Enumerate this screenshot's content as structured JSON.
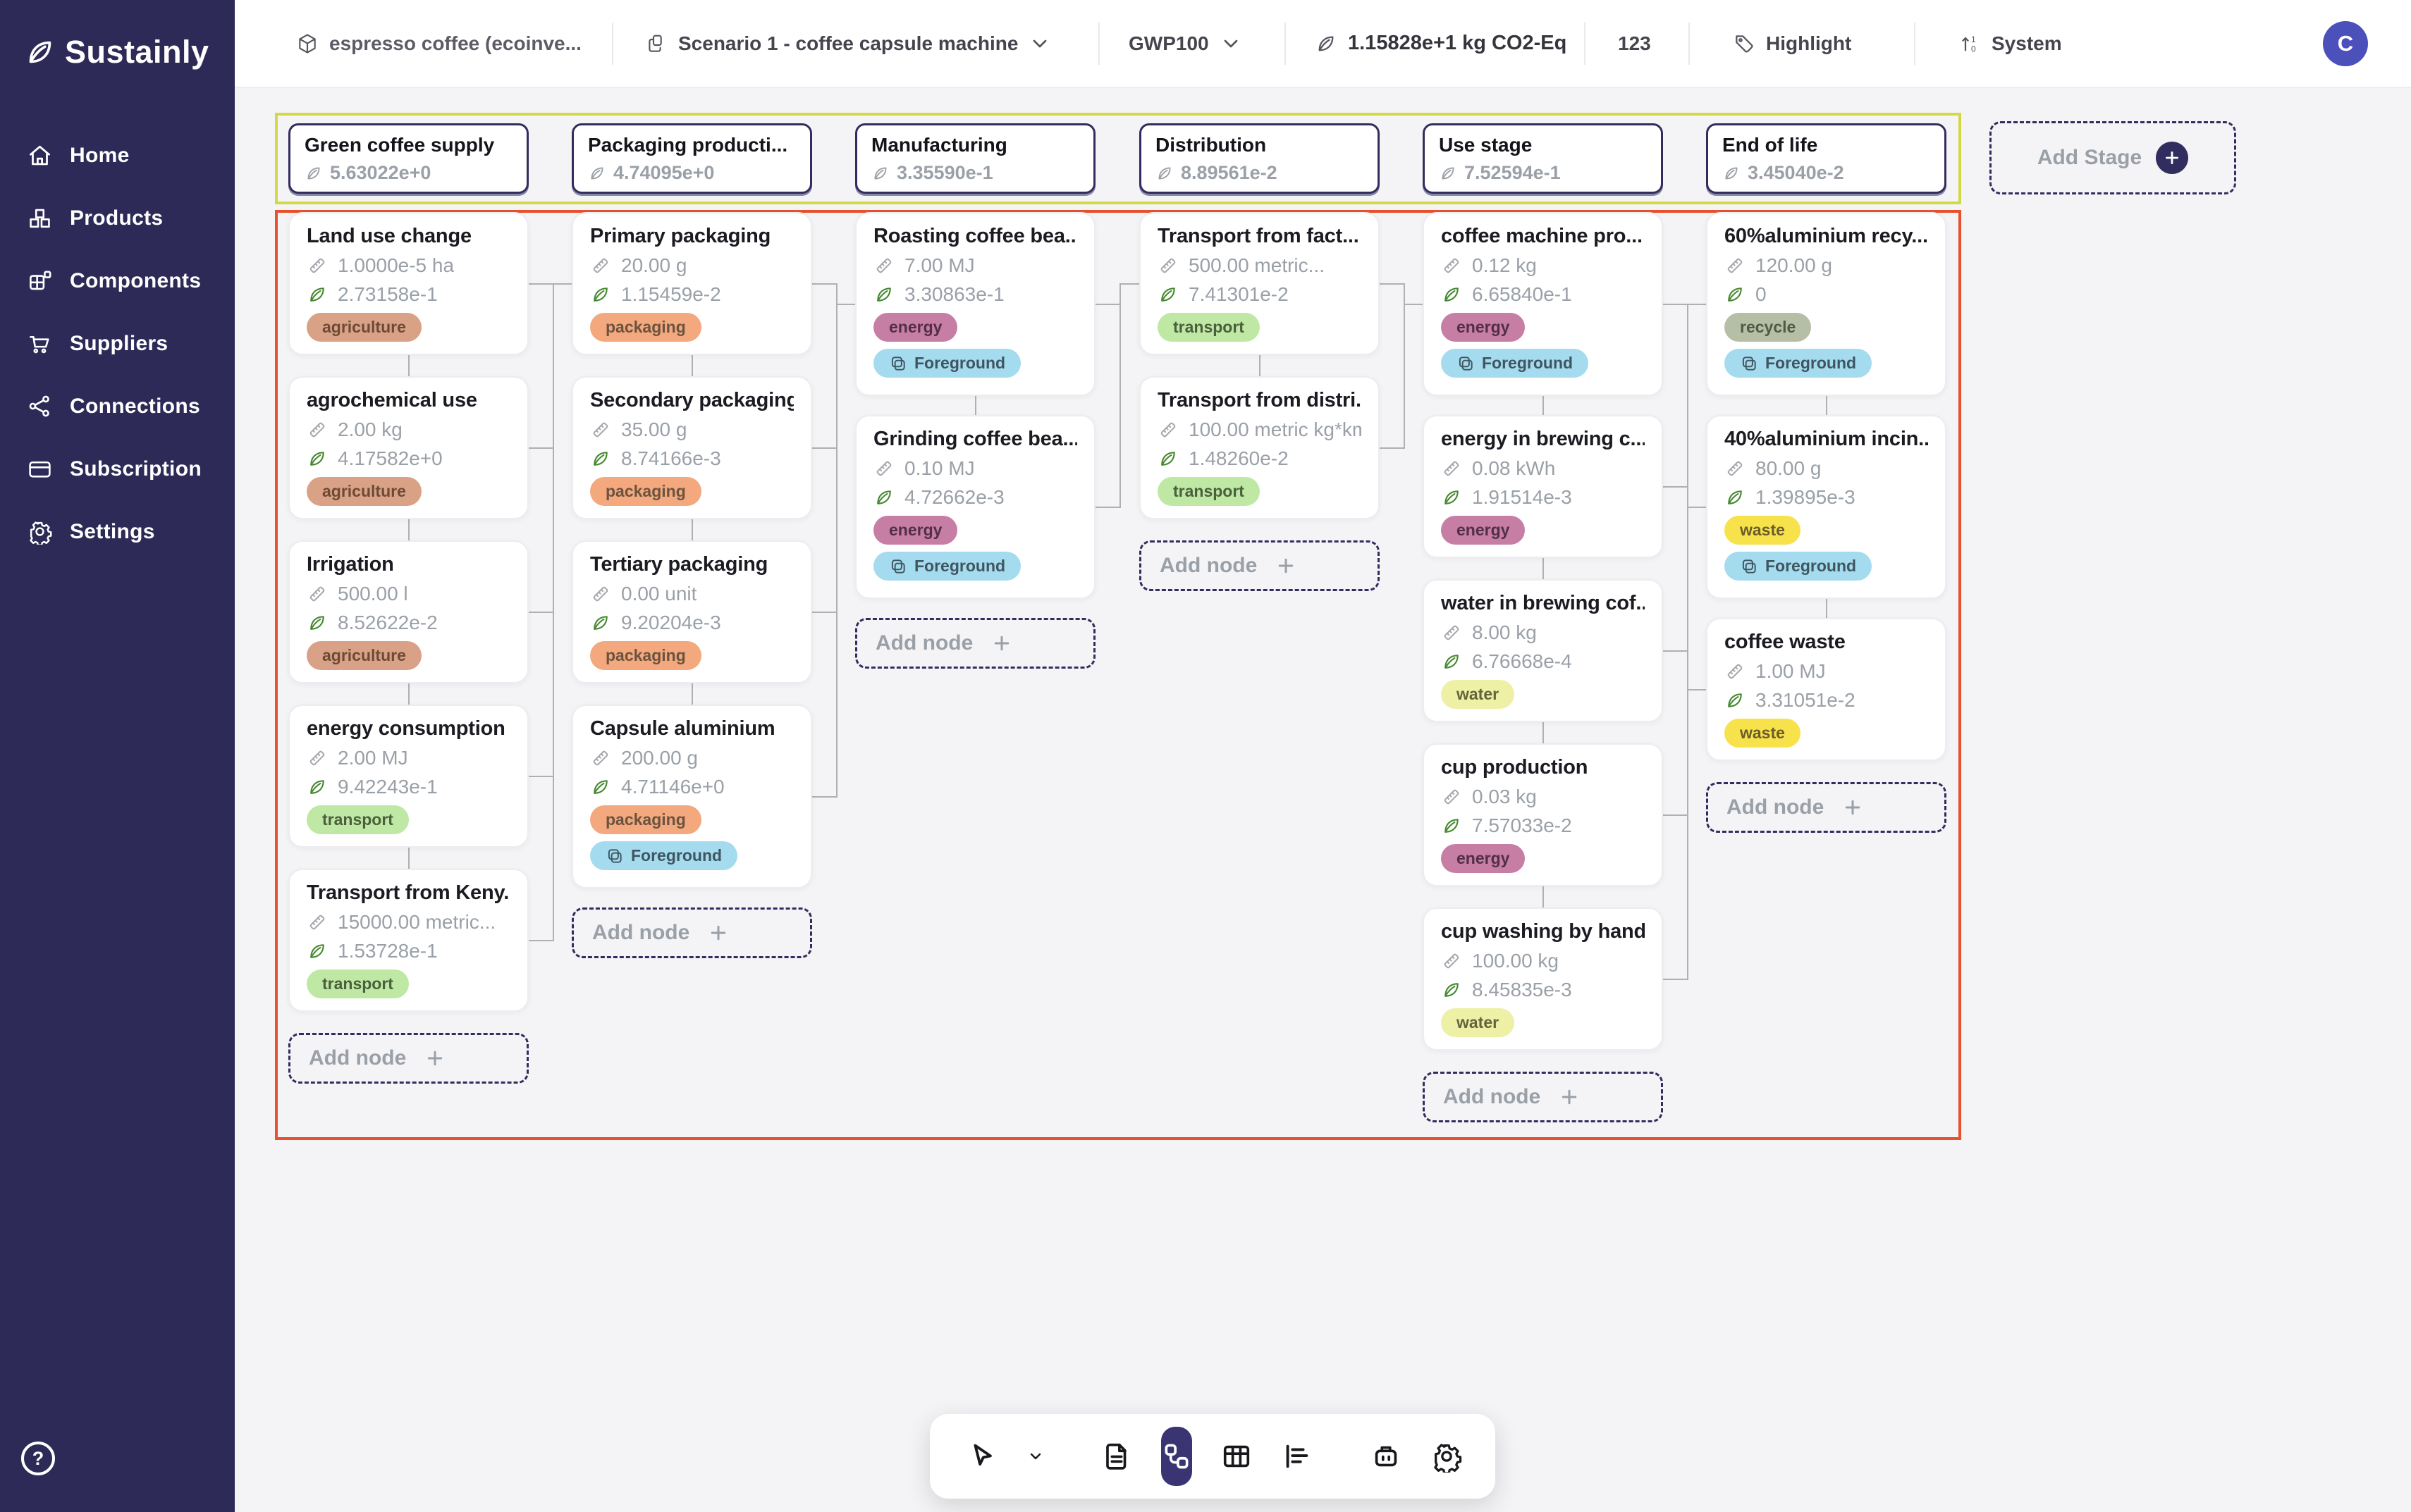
{
  "topbar": {
    "product": "espresso coffee (ecoinve...",
    "scenario": "Scenario 1 - coffee capsule machine",
    "metric": "GWP100",
    "co2_total": "1.15828e+1  kg CO2-Eq",
    "count": "123",
    "highlight": "Highlight",
    "system": "System",
    "avatar_initial": "C"
  },
  "sidebar": {
    "logo": "Sustainly",
    "items": [
      {
        "label": "Home"
      },
      {
        "label": "Products"
      },
      {
        "label": "Components"
      },
      {
        "label": "Suppliers"
      },
      {
        "label": "Connections"
      },
      {
        "label": "Subscription"
      },
      {
        "label": "Settings"
      }
    ],
    "help": "?"
  },
  "canvas": {
    "add_stage": "Add Stage",
    "add_node": "Add node",
    "stages": [
      {
        "name": "Green coffee supply",
        "value": "5.63022e+0"
      },
      {
        "name": "Packaging producti...",
        "value": "4.74095e+0"
      },
      {
        "name": "Manufacturing",
        "value": "3.35590e-1"
      },
      {
        "name": "Distribution",
        "value": "8.89561e-2"
      },
      {
        "name": "Use stage",
        "value": "7.52594e-1"
      },
      {
        "name": "End of life",
        "value": "3.45040e-2"
      }
    ],
    "columns": [
      {
        "nodes": [
          {
            "name": "Land use change",
            "qty": "1.0000e-5 ha",
            "value": "2.73158e-1",
            "tags": [
              "agriculture"
            ]
          },
          {
            "name": "agrochemical use",
            "qty": "2.00 kg",
            "value": "4.17582e+0",
            "tags": [
              "agriculture"
            ]
          },
          {
            "name": "Irrigation",
            "qty": "500.00 l",
            "value": "8.52622e-2",
            "tags": [
              "agriculture"
            ]
          },
          {
            "name": "energy consumption",
            "qty": "2.00 MJ",
            "value": "9.42243e-1",
            "tags": [
              "transport"
            ]
          },
          {
            "name": "Transport from Keny...",
            "qty": "15000.00 metric...",
            "value": "1.53728e-1",
            "tags": [
              "transport"
            ]
          }
        ]
      },
      {
        "nodes": [
          {
            "name": "Primary packaging",
            "qty": "20.00 g",
            "value": "1.15459e-2",
            "tags": [
              "packaging"
            ]
          },
          {
            "name": "Secondary packaging",
            "qty": "35.00 g",
            "value": "8.74166e-3",
            "tags": [
              "packaging"
            ]
          },
          {
            "name": "Tertiary packaging",
            "qty": "0.00 unit",
            "value": "9.20204e-3",
            "tags": [
              "packaging"
            ]
          },
          {
            "name": "Capsule aluminium",
            "qty": "200.00 g",
            "value": "4.71146e+0",
            "tags": [
              "packaging",
              "Foreground"
            ]
          }
        ]
      },
      {
        "nodes": [
          {
            "name": "Roasting coffee bea...",
            "qty": "7.00 MJ",
            "value": "3.30863e-1",
            "tags": [
              "energy",
              "Foreground"
            ]
          },
          {
            "name": "Grinding coffee bea...",
            "qty": "0.10 MJ",
            "value": "4.72662e-3",
            "tags": [
              "energy",
              "Foreground"
            ]
          }
        ]
      },
      {
        "nodes": [
          {
            "name": "Transport from fact...",
            "qty": "500.00 metric...",
            "value": "7.41301e-2",
            "tags": [
              "transport"
            ]
          },
          {
            "name": "Transport from distri...",
            "qty": "100.00 metric kg*km",
            "value": "1.48260e-2",
            "tags": [
              "transport"
            ]
          }
        ]
      },
      {
        "nodes": [
          {
            "name": "coffee machine pro...",
            "qty": "0.12 kg",
            "value": "6.65840e-1",
            "tags": [
              "energy",
              "Foreground"
            ]
          },
          {
            "name": "energy in brewing c...",
            "qty": "0.08 kWh",
            "value": "1.91514e-3",
            "tags": [
              "energy"
            ]
          },
          {
            "name": "water in brewing cof...",
            "qty": "8.00 kg",
            "value": "6.76668e-4",
            "tags": [
              "water"
            ]
          },
          {
            "name": "cup production",
            "qty": "0.03 kg",
            "value": "7.57033e-2",
            "tags": [
              "energy"
            ]
          },
          {
            "name": "cup washing by hand",
            "qty": "100.00 kg",
            "value": "8.45835e-3",
            "tags": [
              "water"
            ]
          }
        ]
      },
      {
        "nodes": [
          {
            "name": "60%aluminium recy...",
            "qty": "120.00 g",
            "value": "0",
            "tags": [
              "recycle",
              "Foreground"
            ]
          },
          {
            "name": "40%aluminium incin...",
            "qty": "80.00 g",
            "value": "1.39895e-3",
            "tags": [
              "waste",
              "Foreground"
            ]
          },
          {
            "name": "coffee waste",
            "qty": "1.00 MJ",
            "value": "3.31051e-2",
            "tags": [
              "waste"
            ]
          }
        ]
      }
    ],
    "tag_colors": {
      "agriculture": {
        "bg": "#d9a287",
        "text": "#6d4a35"
      },
      "packaging": {
        "bg": "#f3a87d",
        "text": "#6b5340"
      },
      "transport": {
        "bg": "#bfe8a4",
        "text": "#4a5f3d"
      },
      "energy": {
        "bg": "#c77ea4",
        "text": "#512f46"
      },
      "water": {
        "bg": "#eef0a5",
        "text": "#63643c"
      },
      "waste": {
        "bg": "#f8e24b",
        "text": "#6a5d2a"
      },
      "recycle": {
        "bg": "#b6bfa6",
        "text": "#4f5a47"
      },
      "Foreground": {
        "bg": "#a4dbee",
        "text": "#3f5560"
      }
    },
    "accents": {
      "stage_border": "#312d5e",
      "stage_strip_border": "#d3d944",
      "node_area_border": "#e8512d",
      "connector": "#b0b0b4"
    }
  },
  "toolbar": {
    "tools": [
      "select",
      "document",
      "flow",
      "table",
      "chart",
      "assistant",
      "settings"
    ],
    "active_tool": "flow"
  }
}
